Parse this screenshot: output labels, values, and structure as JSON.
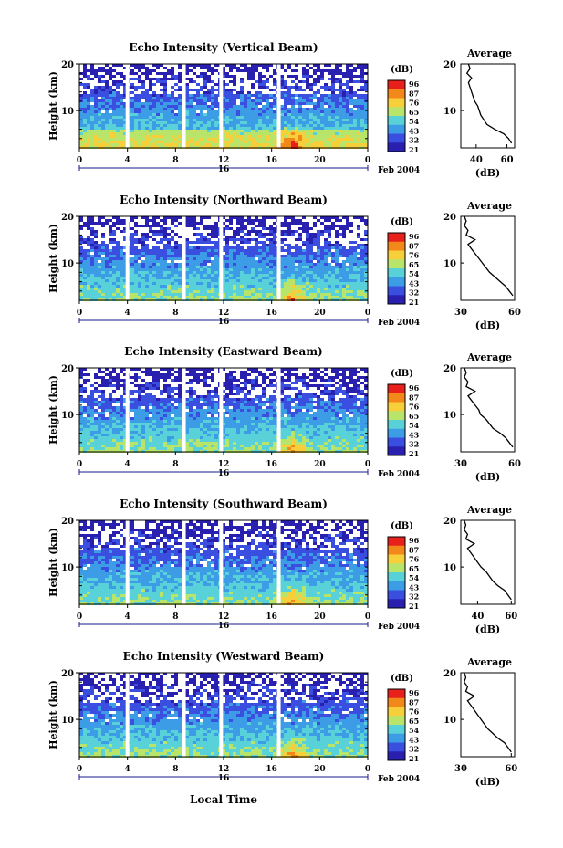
{
  "chart_data": {
    "type": "heatmap",
    "date_label": "Feb 2004",
    "day_label": "16",
    "xlabel": "Local Time",
    "x_ticks": [
      "0",
      "4",
      "8",
      "12",
      "16",
      "20",
      "0"
    ],
    "xlim": [
      0,
      24
    ],
    "ylabel": "Height (km)",
    "ylim": [
      2,
      20
    ],
    "y_ticks": [
      "10",
      "20"
    ],
    "colorbar": {
      "unit": "(dB)",
      "levels": [
        "96",
        "87",
        "76",
        "65",
        "54",
        "43",
        "32",
        "21"
      ],
      "colors": [
        "#e8201c",
        "#f2871a",
        "#f6cf3a",
        "#b9e46a",
        "#58d2d8",
        "#3c9ce6",
        "#3a4ee0",
        "#2a20b0"
      ]
    },
    "data_gaps_local_time": [
      4,
      8.7,
      11.8,
      16.6
    ],
    "average_panel": {
      "title": "Average",
      "xlabel": "(dB)",
      "y_ticks": [
        "10",
        "20"
      ]
    },
    "panels": [
      {
        "title": "Echo Intensity (Vertical Beam)",
        "avg_x_ticks": [
          "40",
          "60"
        ],
        "avg_xlim": [
          30,
          65
        ],
        "avg_profile": {
          "height": [
            3,
            4,
            5,
            6,
            7,
            8,
            9,
            10,
            11,
            12,
            13,
            14,
            15,
            16,
            17,
            18,
            19,
            20
          ],
          "db": [
            63,
            61,
            58,
            52,
            47,
            45,
            43,
            42,
            41,
            39,
            38,
            37,
            36,
            35,
            37,
            34,
            36,
            35
          ]
        }
      },
      {
        "title": "Echo Intensity (Northward Beam)",
        "avg_x_ticks": [
          "30",
          "60"
        ],
        "avg_xlim": [
          30,
          60
        ],
        "avg_profile": {
          "height": [
            3,
            4,
            5,
            6,
            7,
            8,
            9,
            10,
            11,
            12,
            13,
            14,
            15,
            16,
            17,
            18,
            19,
            20
          ],
          "db": [
            59,
            57,
            55,
            52,
            49,
            46,
            44,
            42,
            40,
            38,
            36,
            34,
            38,
            33,
            34,
            32,
            33,
            32
          ]
        }
      },
      {
        "title": "Echo Intensity (Eastward Beam)",
        "avg_x_ticks": [
          "30",
          "60"
        ],
        "avg_xlim": [
          30,
          60
        ],
        "avg_profile": {
          "height": [
            3,
            4,
            5,
            6,
            7,
            8,
            9,
            10,
            11,
            12,
            13,
            14,
            15,
            16,
            17,
            18,
            19,
            20
          ],
          "db": [
            59,
            57,
            55,
            52,
            48,
            46,
            44,
            41,
            40,
            38,
            36,
            34,
            38,
            33,
            34,
            32,
            33,
            32
          ]
        }
      },
      {
        "title": "Echo Intensity (Southward Beam)",
        "avg_x_ticks": [
          "40",
          "60"
        ],
        "avg_xlim": [
          30,
          62
        ],
        "avg_profile": {
          "height": [
            3,
            4,
            5,
            6,
            7,
            8,
            9,
            10,
            11,
            12,
            13,
            14,
            15,
            16,
            17,
            18,
            19,
            20
          ],
          "db": [
            60,
            58,
            56,
            52,
            49,
            47,
            45,
            42,
            40,
            38,
            36,
            34,
            38,
            33,
            34,
            32,
            33,
            32
          ]
        }
      },
      {
        "title": "Echo Intensity (Westward Beam)",
        "avg_x_ticks": [
          "30",
          "60"
        ],
        "avg_xlim": [
          30,
          62
        ],
        "avg_profile": {
          "height": [
            3,
            4,
            5,
            6,
            7,
            8,
            9,
            10,
            11,
            12,
            13,
            14,
            15,
            16,
            17,
            18,
            19,
            20
          ],
          "db": [
            60,
            58,
            56,
            52,
            49,
            46,
            44,
            42,
            40,
            38,
            36,
            34,
            38,
            33,
            34,
            32,
            33,
            32
          ]
        }
      }
    ]
  }
}
